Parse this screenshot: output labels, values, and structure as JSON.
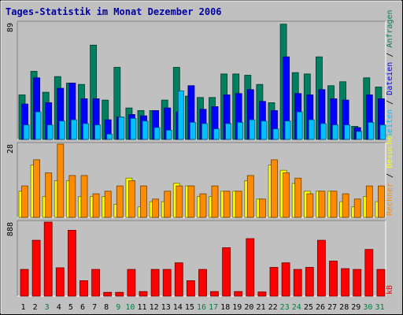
{
  "chart_data": {
    "type": "bar",
    "title": "Tages-Statistik im Monat Dezember 2006",
    "categories": [
      "1",
      "2",
      "3",
      "4",
      "5",
      "6",
      "7",
      "8",
      "9",
      "10",
      "11",
      "12",
      "13",
      "14",
      "15",
      "16",
      "17",
      "18",
      "19",
      "20",
      "21",
      "22",
      "23",
      "24",
      "25",
      "26",
      "27",
      "28",
      "29",
      "30",
      "31"
    ],
    "weekend_days": [
      "3",
      "9",
      "10",
      "16",
      "17",
      "23",
      "24",
      "30",
      "31"
    ],
    "colors": {
      "title": "#0000a0",
      "weekday_label": "#000000",
      "weekend_label": "#008040",
      "hits": "#008060",
      "files": "#0000ff",
      "pages": "#00c0ff",
      "visits": "#ffff00",
      "sites": "#ff8c00",
      "kb": "#ff0000"
    },
    "panels": [
      {
        "name": "top",
        "ymax": 89,
        "ymax_label": "89",
        "right_label_parts": [
          {
            "text": "Seiten",
            "color": "#00c0ff"
          },
          {
            "text": " / ",
            "color": "#000000"
          },
          {
            "text": "Dateien",
            "color": "#0000ff"
          },
          {
            "text": " / ",
            "color": "#000000"
          },
          {
            "text": "Anfragen",
            "color": "#008060"
          }
        ],
        "series": [
          {
            "name": "Anfragen",
            "values": [
              34,
              52,
              36,
              48,
              43,
              42,
              72,
              30,
              55,
              24,
              22,
              22,
              30,
              55,
              33,
              32,
              32,
              50,
              50,
              49,
              42,
              28,
              88,
              51,
              50,
              63,
              41,
              44,
              10,
              47,
              40
            ]
          },
          {
            "name": "Dateien",
            "values": [
              27,
              47,
              28,
              39,
              43,
              31,
              31,
              15,
              17,
              19,
              18,
              22,
              24,
              21,
              41,
              23,
              25,
              34,
              35,
              38,
              29,
              22,
              63,
              35,
              34,
              38,
              31,
              30,
              9,
              34,
              31
            ]
          },
          {
            "name": "Seiten",
            "values": [
              11,
              21,
              11,
              14,
              15,
              12,
              11,
              4,
              17,
              16,
              14,
              9,
              7,
              37,
              13,
              12,
              8,
              12,
              13,
              15,
              14,
              8,
              14,
              21,
              15,
              12,
              11,
              11,
              6,
              13,
              11
            ]
          }
        ]
      },
      {
        "name": "middle",
        "ymax": 28,
        "ymax_label": "28",
        "right_label_parts": [
          {
            "text": "Rechner",
            "color": "#ff8c00"
          },
          {
            "text": " / ",
            "color": "#000000"
          },
          {
            "text": "Besuche",
            "color": "#ffff00"
          }
        ],
        "series": [
          {
            "name": "Besuche",
            "values": [
              10,
              20,
              8,
              14,
              14,
              8,
              8,
              8,
              5,
              15,
              4,
              6,
              6,
              13,
              12,
              8,
              8,
              10,
              10,
              14,
              7,
              20,
              18,
              13,
              10,
              10,
              10,
              6,
              4,
              8,
              6
            ]
          },
          {
            "name": "Rechner",
            "values": [
              12,
              22,
              17,
              28,
              16,
              16,
              9,
              10,
              12,
              14,
              12,
              7,
              10,
              12,
              12,
              9,
              12,
              10,
              10,
              16,
              7,
              22,
              17,
              15,
              9,
              10,
              10,
              9,
              7,
              12,
              12
            ]
          }
        ]
      },
      {
        "name": "bottom",
        "ymax": 888,
        "ymax_label": "888",
        "right_label_parts": [
          {
            "text": "kB",
            "color": "#ff0000"
          }
        ],
        "series": [
          {
            "name": "kB",
            "values": [
              320,
              670,
              888,
              340,
              790,
              185,
              320,
              45,
              45,
              320,
              55,
              320,
              320,
              400,
              185,
              320,
              55,
              580,
              55,
              690,
              50,
              345,
              400,
              320,
              345,
              670,
              420,
              330,
              320,
              560,
              320
            ]
          }
        ]
      }
    ]
  }
}
